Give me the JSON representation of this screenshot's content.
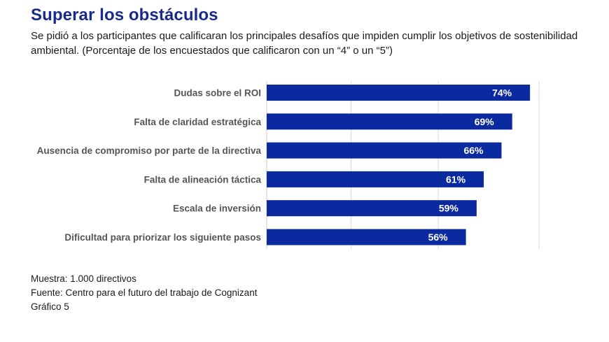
{
  "header": {
    "title": "Superar los obstáculos",
    "subtitle": "Se pidió a los participantes que calificaran los principales desafíos que impiden cumplir los objetivos de sostenibilidad ambiental. (Porcentaje de los encuestados que calificaron con un “4” o un “5”)"
  },
  "chart_data": {
    "type": "bar",
    "orientation": "horizontal",
    "title": "Superar los obstáculos",
    "categories": [
      "Dudas sobre el ROI",
      "Falta de claridad estratégica",
      "Ausencia de compromiso por parte de la directiva",
      "Falta de alineación táctica",
      "Escala de inversión",
      "Dificultad para priorizar los siguiente pasos"
    ],
    "values": [
      74,
      69,
      66,
      61,
      59,
      56
    ],
    "value_labels": [
      "74%",
      "69%",
      "66%",
      "61%",
      "59%",
      "56%"
    ],
    "xlim": [
      0,
      75
    ],
    "grid": true,
    "bar_color": "#0c2aa0",
    "xlabel": "",
    "ylabel": ""
  },
  "footer": {
    "sample": "Muestra: 1.000 directivos",
    "source": "Fuente: Centro para el futuro del trabajo de Cognizant",
    "figure": "Gráfico 5"
  },
  "colors": {
    "title": "#1a2a8c",
    "bar": "#0c2aa0",
    "gridline": "#d9d9d9"
  }
}
